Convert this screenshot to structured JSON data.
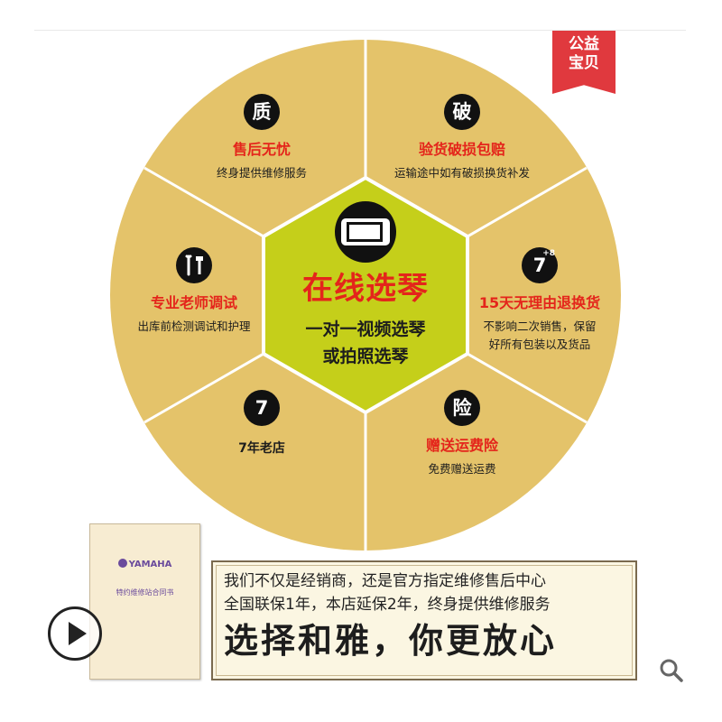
{
  "badge": {
    "line1": "公益",
    "line2": "宝贝"
  },
  "center": {
    "title": "在线选琴",
    "line1": "一对一视频选琴",
    "line2": "或拍照选琴",
    "icon": "phone-icon"
  },
  "segments": [
    {
      "badge": "质",
      "title": "售后无忧",
      "desc": "终身提供维修服务"
    },
    {
      "badge": "破",
      "title": "验货破损包赔",
      "desc": "运输途中如有破损换货补发"
    },
    {
      "badge": "7",
      "badge_sup": "+8",
      "title": "15天无理由退换货",
      "desc1": "不影响二次销售，保留",
      "desc2": "好所有包装以及货品"
    },
    {
      "badge": "险",
      "title": "赠送运费险",
      "desc": "免费赠送运费"
    },
    {
      "badge": "7",
      "title": "7年老店"
    },
    {
      "badge_icon": "tools-icon",
      "title": "专业老师调试",
      "desc": "出库前检测调试和护理"
    }
  ],
  "certificate": {
    "brand": "YAMAHA",
    "title": "特约维修站合同书"
  },
  "notice": {
    "line1": "我们不仅是经销商，还是官方指定维修售后中心",
    "line2": "全国联保1年，本店延保2年，终身提供维修服务",
    "slogan": "选择和雅，你更放心"
  },
  "colors": {
    "segment_fill": "#e4c36a",
    "center_fill": "#c5cf1a",
    "accent_red": "#e4251b"
  },
  "icons": {
    "play": "play-icon",
    "search": "search-icon"
  }
}
